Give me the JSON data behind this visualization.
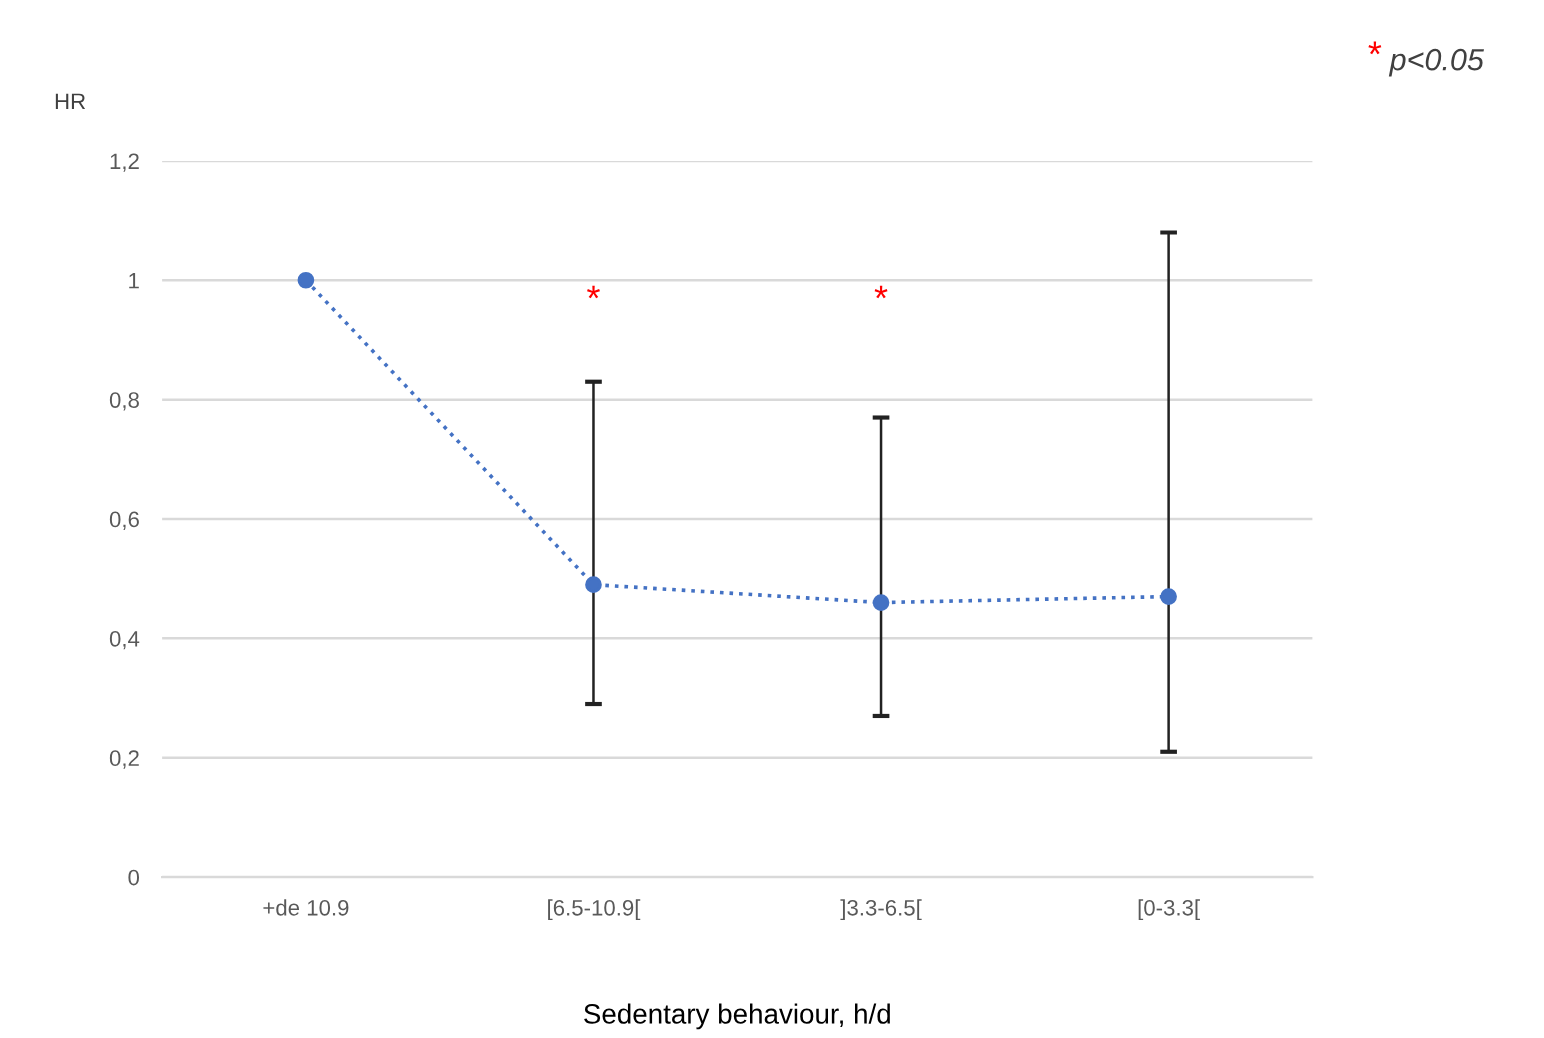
{
  "chart_data": {
    "type": "line",
    "xlabel": "Sedentary behaviour, h/d",
    "ylabel": "HR",
    "categories": [
      "+de 10.9",
      "[6.5-10.9[",
      "]3.3-6.5[",
      "[0-3.3["
    ],
    "series": [
      {
        "color": "#4472c4",
        "values": [
          1.0,
          0.49,
          0.46,
          0.47
        ],
        "errors": [
          null,
          [
            0.29,
            0.83
          ],
          [
            0.27,
            0.77
          ],
          [
            0.21,
            1.08
          ]
        ]
      }
    ],
    "ylim": [
      0,
      1.2
    ],
    "yticks": [
      {
        "value": 0,
        "label": "0"
      },
      {
        "value": 0.2,
        "label": "0,2"
      },
      {
        "value": 0.4,
        "label": "0,4"
      },
      {
        "value": 0.6,
        "label": "0,6"
      },
      {
        "value": 0.8,
        "label": "0,8"
      },
      {
        "value": 1,
        "label": "1"
      },
      {
        "value": 1.2,
        "label": "1,2"
      }
    ],
    "grid": "y",
    "marker": "circle",
    "line_style": "dotted",
    "annotations": [
      "*",
      "*",
      "* p<0.05"
    ]
  }
}
